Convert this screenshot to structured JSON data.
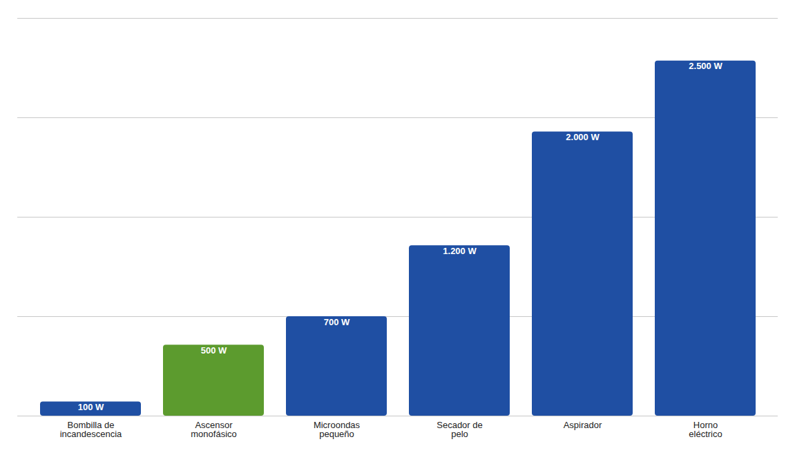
{
  "chart_data": {
    "type": "bar",
    "categories": [
      "Bombilla de incandescencia",
      "Ascensor monofásico",
      "Microondas pequeño",
      "Secador de pelo",
      "Aspirador",
      "Horno eléctrico"
    ],
    "values": [
      100,
      500,
      700,
      1200,
      2000,
      2500
    ],
    "value_labels": [
      "100 W",
      "500 W",
      "700 W",
      "1.200 W",
      "2.000 W",
      "2.500 W"
    ],
    "colors": [
      "#1f4fa3",
      "#5c9b2e",
      "#1f4fa3",
      "#1f4fa3",
      "#1f4fa3",
      "#1f4fa3"
    ],
    "ylim": [
      0,
      2800
    ],
    "yticks": [
      700,
      1400,
      2100,
      2800
    ],
    "grid": true,
    "data_labels": true,
    "tick_labels": "x"
  }
}
